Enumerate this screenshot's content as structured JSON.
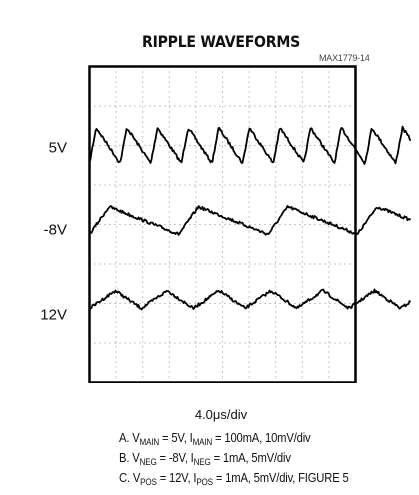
{
  "title": "RIPPLE WAVEFORMS",
  "figure_id": "MAX1779-14",
  "colors": {
    "trace": "#000000",
    "grid_dots": "#8c8c8c",
    "frame": "#000000"
  },
  "chart_data": {
    "type": "line",
    "grid": true,
    "divisions": {
      "x": 10,
      "y": 8
    },
    "timebase": "4.0μs/div",
    "channels": [
      {
        "label": "5V",
        "center_div": 2.0,
        "shape": "sawtooth",
        "cycles_on_screen": 10.5,
        "amplitude_div": 0.9,
        "description": "A. V_MAIN = 5V, I_MAIN = 100mA, 10mV/div"
      },
      {
        "label": "-8V",
        "center_div": 3.9,
        "shape": "sawtooth",
        "cycles_on_screen": 3.6,
        "amplitude_div": 0.7,
        "description": "B. V_NEG = -8V, I_NEG = 1mA, 5mV/div"
      },
      {
        "label": "12V",
        "center_div": 5.9,
        "shape": "triangle",
        "cycles_on_screen": 6.2,
        "amplitude_div": 0.45,
        "description": "C. V_POS = 12V, I_POS = 1mA, 5mV/div, FIGURE 5"
      }
    ],
    "conditions": [
      {
        "prefix": "A. V",
        "v_sub": "MAIN",
        "mid": " = 5V, I",
        "i_sub": "MAIN",
        "rest": " = 100mA, 10mV/div"
      },
      {
        "prefix": "B. V",
        "v_sub": "NEG",
        "mid": " = -8V, I",
        "i_sub": "NEG",
        "rest": " = 1mA, 5mV/div"
      },
      {
        "prefix": "C. V",
        "v_sub": "POS",
        "mid": " = 12V, I",
        "i_sub": "POS",
        "rest": " = 1mA, 5mV/div, FIGURE 5"
      }
    ]
  }
}
